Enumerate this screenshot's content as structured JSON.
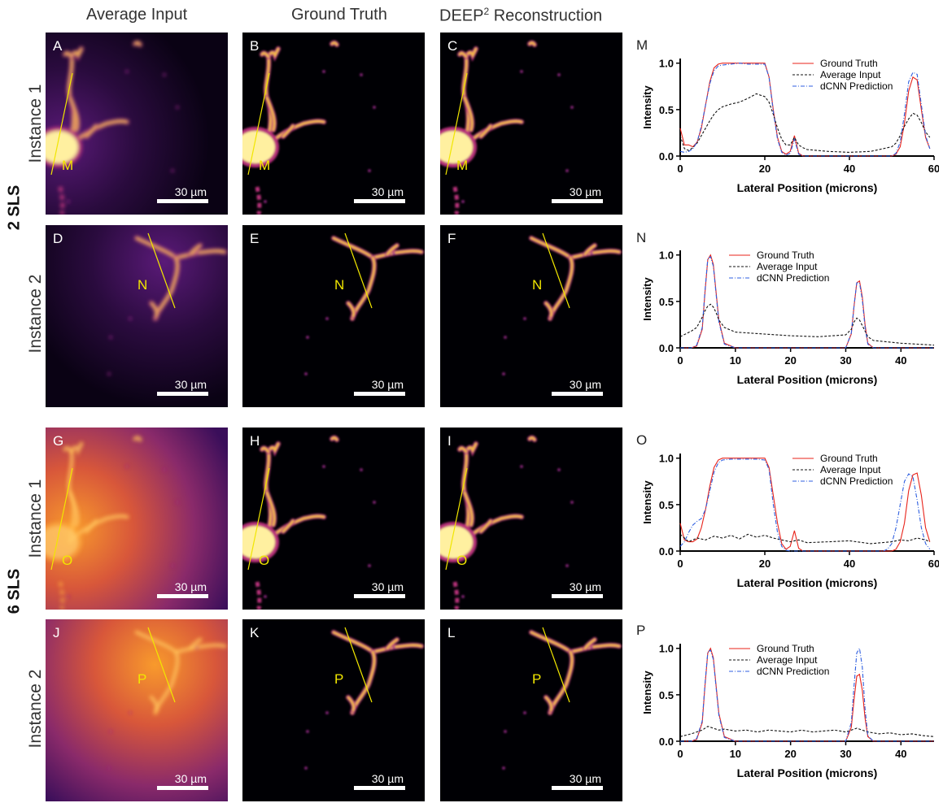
{
  "columns": [
    {
      "text": "Average Input"
    },
    {
      "text": "Ground Truth"
    },
    {
      "text_main": "DEEP",
      "text_sup": "2",
      "text_tail": " Reconstruction"
    }
  ],
  "groups": [
    "2 SLS",
    "6 SLS"
  ],
  "rows": [
    "Instance 1",
    "Instance 2",
    "Instance 1",
    "Instance 2"
  ],
  "scale_label": "30 µm",
  "panels": [
    {
      "letter": "A",
      "line_label": "M",
      "kind": "avg2",
      "neuron": 1
    },
    {
      "letter": "B",
      "line_label": "M",
      "kind": "gt",
      "neuron": 1
    },
    {
      "letter": "C",
      "line_label": "M",
      "kind": "gt",
      "neuron": 1
    },
    {
      "letter": "D",
      "line_label": "N",
      "kind": "avg2",
      "neuron": 2
    },
    {
      "letter": "E",
      "line_label": "N",
      "kind": "gt",
      "neuron": 2
    },
    {
      "letter": "F",
      "line_label": "N",
      "kind": "gt",
      "neuron": 2
    },
    {
      "letter": "G",
      "line_label": "O",
      "kind": "avg6",
      "neuron": 1
    },
    {
      "letter": "H",
      "line_label": "O",
      "kind": "gt",
      "neuron": 1
    },
    {
      "letter": "I",
      "line_label": "O",
      "kind": "gt",
      "neuron": 1
    },
    {
      "letter": "J",
      "line_label": "P",
      "kind": "avg6",
      "neuron": 2
    },
    {
      "letter": "K",
      "line_label": "P",
      "kind": "gt",
      "neuron": 2
    },
    {
      "letter": "L",
      "line_label": "P",
      "kind": "gt",
      "neuron": 2
    }
  ],
  "colors": {
    "line_marker": "#f1e600",
    "ground_truth": "#e8231a",
    "average_input": "#111111",
    "dcnn": "#2f5fe0"
  },
  "chart_data": [
    {
      "type": "line",
      "letter": "M",
      "xlabel": "Lateral Position (microns)",
      "ylabel": "Intensity",
      "xlim": [
        0,
        60
      ],
      "ylim": [
        0,
        1.05
      ],
      "xticks": [
        0,
        20,
        40,
        60
      ],
      "yticks": [
        "0.0",
        "0.5",
        "1.0"
      ],
      "legend": "top-right",
      "series": [
        {
          "name": "Ground Truth",
          "style": "solid",
          "color": "#e8231a",
          "x": [
            0,
            1,
            2,
            3,
            4,
            5,
            6,
            7,
            8,
            9,
            10,
            12,
            14,
            16,
            18,
            20,
            21,
            22,
            23,
            24,
            25,
            26,
            27,
            28,
            29,
            30,
            35,
            40,
            45,
            50,
            51,
            52,
            53,
            54,
            55,
            56,
            57,
            58,
            59
          ],
          "y": [
            0.3,
            0.12,
            0.12,
            0.1,
            0.15,
            0.3,
            0.55,
            0.8,
            0.95,
            0.99,
            1,
            1,
            1,
            1,
            1,
            1,
            0.85,
            0.5,
            0.2,
            0.05,
            0.02,
            0.05,
            0.22,
            0.03,
            0,
            0,
            0,
            0,
            0,
            0,
            0.02,
            0.1,
            0.35,
            0.7,
            0.85,
            0.82,
            0.5,
            0.2,
            0.08
          ]
        },
        {
          "name": "Average Input",
          "style": "dashed",
          "color": "#111111",
          "x": [
            0,
            1,
            2,
            3,
            4,
            5,
            6,
            7,
            8,
            9,
            10,
            12,
            14,
            16,
            18,
            20,
            21,
            22,
            23,
            24,
            25,
            26,
            27,
            28,
            29,
            30,
            35,
            40,
            45,
            50,
            51,
            52,
            53,
            54,
            55,
            56,
            57,
            58,
            59
          ],
          "y": [
            0.22,
            0.08,
            0.06,
            0.09,
            0.14,
            0.22,
            0.3,
            0.38,
            0.45,
            0.5,
            0.53,
            0.56,
            0.58,
            0.62,
            0.67,
            0.64,
            0.58,
            0.45,
            0.3,
            0.18,
            0.12,
            0.12,
            0.2,
            0.12,
            0.09,
            0.07,
            0.05,
            0.04,
            0.05,
            0.1,
            0.14,
            0.22,
            0.32,
            0.4,
            0.46,
            0.44,
            0.36,
            0.26,
            0.2
          ]
        },
        {
          "name": "dCNN Prediction",
          "style": "dashdot",
          "color": "#2f5fe0",
          "x": [
            0,
            1,
            2,
            3,
            4,
            5,
            6,
            7,
            8,
            9,
            10,
            12,
            14,
            16,
            18,
            20,
            21,
            22,
            23,
            24,
            25,
            26,
            27,
            28,
            29,
            30,
            35,
            40,
            45,
            50,
            51,
            52,
            53,
            54,
            55,
            56,
            57,
            58,
            59
          ],
          "y": [
            0.05,
            0.04,
            0.05,
            0.08,
            0.15,
            0.32,
            0.55,
            0.78,
            0.92,
            0.97,
            0.98,
            0.99,
            1,
            0.99,
            0.99,
            0.99,
            0.85,
            0.48,
            0.18,
            0.04,
            0.01,
            0.03,
            0.18,
            0.02,
            0,
            0,
            0,
            0,
            0,
            0,
            0.03,
            0.15,
            0.45,
            0.8,
            0.9,
            0.88,
            0.55,
            0.22,
            0.08
          ]
        }
      ]
    },
    {
      "type": "line",
      "letter": "N",
      "xlabel": "Lateral Position (microns)",
      "ylabel": "Intensity",
      "xlim": [
        0,
        46
      ],
      "ylim": [
        0,
        1.05
      ],
      "xticks": [
        0,
        10,
        20,
        30,
        40
      ],
      "yticks": [
        "0.0",
        "0.5",
        "1.0"
      ],
      "legend": "top-center",
      "series": [
        {
          "name": "Ground Truth",
          "style": "solid",
          "color": "#e8231a",
          "x": [
            0,
            2,
            3,
            4,
            4.5,
            5,
            5.5,
            6,
            6.5,
            7,
            8,
            10,
            20,
            30,
            31,
            31.5,
            32,
            32.5,
            33,
            33.5,
            34,
            35,
            40,
            46
          ],
          "y": [
            0,
            0,
            0.02,
            0.2,
            0.6,
            0.95,
            1,
            0.9,
            0.6,
            0.3,
            0.05,
            0,
            0,
            0,
            0.15,
            0.45,
            0.7,
            0.72,
            0.55,
            0.25,
            0.05,
            0,
            0,
            0
          ]
        },
        {
          "name": "Average Input",
          "style": "dashed",
          "color": "#111111",
          "x": [
            0,
            2,
            3,
            4,
            4.5,
            5,
            5.5,
            6,
            6.5,
            7,
            8,
            10,
            15,
            20,
            25,
            30,
            31,
            31.5,
            32,
            32.5,
            33,
            33.5,
            34,
            35,
            40,
            46
          ],
          "y": [
            0.12,
            0.18,
            0.22,
            0.33,
            0.4,
            0.45,
            0.47,
            0.44,
            0.38,
            0.3,
            0.22,
            0.17,
            0.15,
            0.13,
            0.12,
            0.14,
            0.2,
            0.28,
            0.32,
            0.3,
            0.24,
            0.18,
            0.12,
            0.08,
            0.05,
            0.03
          ]
        },
        {
          "name": "dCNN Prediction",
          "style": "dashdot",
          "color": "#2f5fe0",
          "x": [
            0,
            2,
            3,
            4,
            4.5,
            5,
            5.5,
            6,
            6.5,
            7,
            8,
            10,
            20,
            30,
            31,
            31.5,
            32,
            32.5,
            33,
            33.5,
            34,
            35,
            40,
            46
          ],
          "y": [
            0,
            0,
            0.03,
            0.22,
            0.62,
            0.96,
            0.98,
            0.88,
            0.58,
            0.28,
            0.04,
            0,
            0,
            0,
            0.16,
            0.46,
            0.7,
            0.7,
            0.52,
            0.22,
            0.04,
            0,
            0,
            0
          ]
        }
      ]
    },
    {
      "type": "line",
      "letter": "O",
      "xlabel": "Lateral Position (microns)",
      "ylabel": "Intensity",
      "xlim": [
        0,
        60
      ],
      "ylim": [
        0,
        1.05
      ],
      "xticks": [
        0,
        20,
        40,
        60
      ],
      "yticks": [
        "0.0",
        "0.5",
        "1.0"
      ],
      "legend": "top-right",
      "series": [
        {
          "name": "Ground Truth",
          "style": "solid",
          "color": "#e8231a",
          "x": [
            0,
            1,
            2,
            3,
            4,
            5,
            6,
            7,
            8,
            9,
            10,
            12,
            14,
            16,
            18,
            20,
            21,
            22,
            23,
            24,
            25,
            26,
            27,
            28,
            29,
            30,
            35,
            40,
            45,
            50,
            51,
            52,
            53,
            54,
            55,
            56,
            57,
            58,
            59
          ],
          "y": [
            0.3,
            0.12,
            0.1,
            0.1,
            0.13,
            0.25,
            0.45,
            0.7,
            0.9,
            0.98,
            1,
            1,
            1,
            1,
            1,
            1,
            0.9,
            0.6,
            0.3,
            0.08,
            0.02,
            0.05,
            0.22,
            0.03,
            0,
            0,
            0,
            0,
            0,
            0,
            0.02,
            0.1,
            0.3,
            0.65,
            0.82,
            0.84,
            0.6,
            0.25,
            0.1
          ]
        },
        {
          "name": "Average Input",
          "style": "dashed",
          "color": "#111111",
          "x": [
            0,
            2,
            4,
            6,
            8,
            10,
            12,
            14,
            16,
            18,
            20,
            22,
            24,
            26,
            28,
            30,
            35,
            40,
            45,
            50,
            52,
            54,
            56,
            58,
            59
          ],
          "y": [
            0.18,
            0.1,
            0.14,
            0.12,
            0.16,
            0.14,
            0.17,
            0.13,
            0.18,
            0.15,
            0.17,
            0.14,
            0.12,
            0.1,
            0.12,
            0.09,
            0.1,
            0.11,
            0.08,
            0.1,
            0.12,
            0.11,
            0.14,
            0.12,
            0.1
          ]
        },
        {
          "name": "dCNN Prediction",
          "style": "dashdot",
          "color": "#2f5fe0",
          "x": [
            0,
            1,
            2,
            3,
            4,
            5,
            6,
            7,
            8,
            9,
            10,
            12,
            14,
            16,
            18,
            20,
            21,
            22,
            23,
            24,
            25,
            26,
            30,
            35,
            40,
            45,
            48,
            49,
            50,
            51,
            52,
            53,
            54,
            55,
            56,
            57,
            58,
            59
          ],
          "y": [
            0.05,
            0.1,
            0.2,
            0.28,
            0.32,
            0.35,
            0.45,
            0.65,
            0.85,
            0.95,
            0.98,
            0.99,
            0.99,
            0.99,
            0.99,
            0.98,
            0.88,
            0.5,
            0.2,
            0.05,
            0.01,
            0,
            0,
            0,
            0,
            0,
            0,
            0.02,
            0.08,
            0.25,
            0.5,
            0.75,
            0.83,
            0.8,
            0.55,
            0.25,
            0.08,
            0.02
          ]
        }
      ]
    },
    {
      "type": "line",
      "letter": "P",
      "xlabel": "Lateral Position (microns)",
      "ylabel": "Intensity",
      "xlim": [
        0,
        46
      ],
      "ylim": [
        0,
        1.05
      ],
      "xticks": [
        0,
        10,
        20,
        30,
        40
      ],
      "yticks": [
        "0.0",
        "0.5",
        "1.0"
      ],
      "legend": "top-center",
      "series": [
        {
          "name": "Ground Truth",
          "style": "solid",
          "color": "#e8231a",
          "x": [
            0,
            2,
            3,
            4,
            4.5,
            5,
            5.5,
            6,
            6.5,
            7,
            8,
            10,
            20,
            30,
            31,
            31.5,
            32,
            32.5,
            33,
            33.5,
            34,
            35,
            40,
            46
          ],
          "y": [
            0,
            0,
            0.02,
            0.2,
            0.6,
            0.95,
            1,
            0.9,
            0.6,
            0.3,
            0.05,
            0,
            0,
            0,
            0.15,
            0.45,
            0.7,
            0.72,
            0.55,
            0.25,
            0.05,
            0,
            0,
            0
          ]
        },
        {
          "name": "Average Input",
          "style": "dashed",
          "color": "#111111",
          "x": [
            0,
            2,
            4,
            5,
            6,
            7,
            8,
            10,
            12,
            14,
            16,
            18,
            20,
            22,
            24,
            26,
            28,
            30,
            32,
            34,
            36,
            38,
            40,
            42,
            44,
            46
          ],
          "y": [
            0.05,
            0.08,
            0.12,
            0.16,
            0.14,
            0.12,
            0.13,
            0.11,
            0.12,
            0.1,
            0.12,
            0.11,
            0.1,
            0.12,
            0.1,
            0.11,
            0.12,
            0.1,
            0.14,
            0.1,
            0.08,
            0.09,
            0.07,
            0.08,
            0.06,
            0.05
          ]
        },
        {
          "name": "dCNN Prediction",
          "style": "dashdot",
          "color": "#2f5fe0",
          "x": [
            0,
            2,
            3,
            4,
            4.5,
            5,
            5.5,
            6,
            6.5,
            7,
            8,
            10,
            20,
            30,
            31,
            31.5,
            32,
            32.5,
            33,
            33.5,
            34,
            35,
            40,
            46
          ],
          "y": [
            0,
            0,
            0.03,
            0.22,
            0.62,
            0.96,
            0.98,
            0.88,
            0.58,
            0.28,
            0.04,
            0,
            0,
            0,
            0.2,
            0.6,
            0.95,
            1,
            0.8,
            0.35,
            0.06,
            0,
            0,
            0
          ]
        }
      ]
    }
  ]
}
